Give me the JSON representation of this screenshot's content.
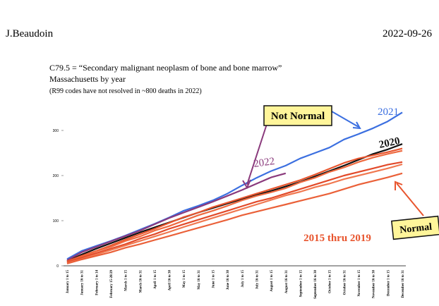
{
  "header": {
    "author": "J.Beaudoin",
    "date": "2022-09-26"
  },
  "chart_data": {
    "type": "line",
    "title": "C79.5 = “Secondary malignant neoplasm of bone and bone marrow”",
    "subtitle": "Massachusetts by year",
    "note": "(R99 codes have not resolved in ~800 deaths in 2022)",
    "categories": [
      "January 1 to 15",
      "January 16 to 31",
      "February 1 to 14",
      "February 15-28/29",
      "March 1 to 15",
      "March 16 to 31",
      "April 1 to 15",
      "April 16 to 30",
      "May 1 to 15",
      "May 16 to 31",
      "June 1 to 15",
      "June 16 to 30",
      "July 1 to 15",
      "July 16 to 31",
      "August 1 to 15",
      "August 16 to 31",
      "September 1 to 15",
      "September 16 to 30",
      "October 1 to 15",
      "October 16 to 31",
      "November 1 to 15",
      "November 16 to 30",
      "December 1 to 15",
      "December 16 to 31"
    ],
    "ylim": [
      0,
      350
    ],
    "yticks": [
      0,
      100,
      200,
      300
    ],
    "series": [
      {
        "name": "2021",
        "color": "#3b6fe0",
        "values": [
          15,
          33,
          44,
          55,
          67,
          80,
          93,
          107,
          122,
          133,
          145,
          160,
          178,
          195,
          210,
          222,
          238,
          250,
          262,
          280,
          292,
          305,
          320,
          340
        ]
      },
      {
        "name": "2020",
        "color": "#111111",
        "values": [
          10,
          25,
          38,
          50,
          62,
          74,
          85,
          96,
          107,
          118,
          128,
          138,
          148,
          157,
          166,
          176,
          186,
          198,
          210,
          222,
          235,
          248,
          258,
          270
        ]
      },
      {
        "name": "2022",
        "color": "#8a3a7c",
        "values": [
          12,
          30,
          42,
          54,
          66,
          78,
          92,
          106,
          118,
          130,
          142,
          155,
          168,
          182,
          196,
          205,
          null,
          null,
          null,
          null,
          null,
          null,
          null,
          null
        ]
      },
      {
        "color": "#e8552e",
        "values": [
          10,
          22,
          33,
          45,
          58,
          70,
          82,
          95,
          108,
          118,
          130,
          140,
          150,
          160,
          170,
          180,
          190,
          202,
          215,
          228,
          238,
          245,
          252,
          260
        ]
      },
      {
        "color": "#ee6a40",
        "values": [
          8,
          20,
          32,
          42,
          55,
          65,
          78,
          88,
          100,
          112,
          122,
          133,
          145,
          155,
          163,
          172,
          185,
          195,
          208,
          218,
          230,
          240,
          248,
          255
        ]
      },
      {
        "color": "#e24a2a",
        "values": [
          8,
          18,
          28,
          38,
          48,
          60,
          70,
          82,
          92,
          102,
          112,
          122,
          132,
          142,
          150,
          160,
          170,
          180,
          190,
          200,
          208,
          216,
          224,
          230
        ]
      },
      {
        "color": "#f07850",
        "values": [
          6,
          15,
          25,
          35,
          45,
          55,
          65,
          75,
          86,
          96,
          106,
          116,
          126,
          136,
          146,
          156,
          164,
          174,
          182,
          192,
          200,
          208,
          216,
          225
        ]
      },
      {
        "color": "#ea6038",
        "values": [
          5,
          14,
          22,
          30,
          40,
          48,
          57,
          66,
          75,
          84,
          93,
          102,
          112,
          120,
          128,
          136,
          144,
          152,
          160,
          170,
          180,
          188,
          196,
          205
        ]
      }
    ],
    "annotations": [
      "Not Normal",
      "Normal",
      "2015 thru 2019"
    ]
  }
}
